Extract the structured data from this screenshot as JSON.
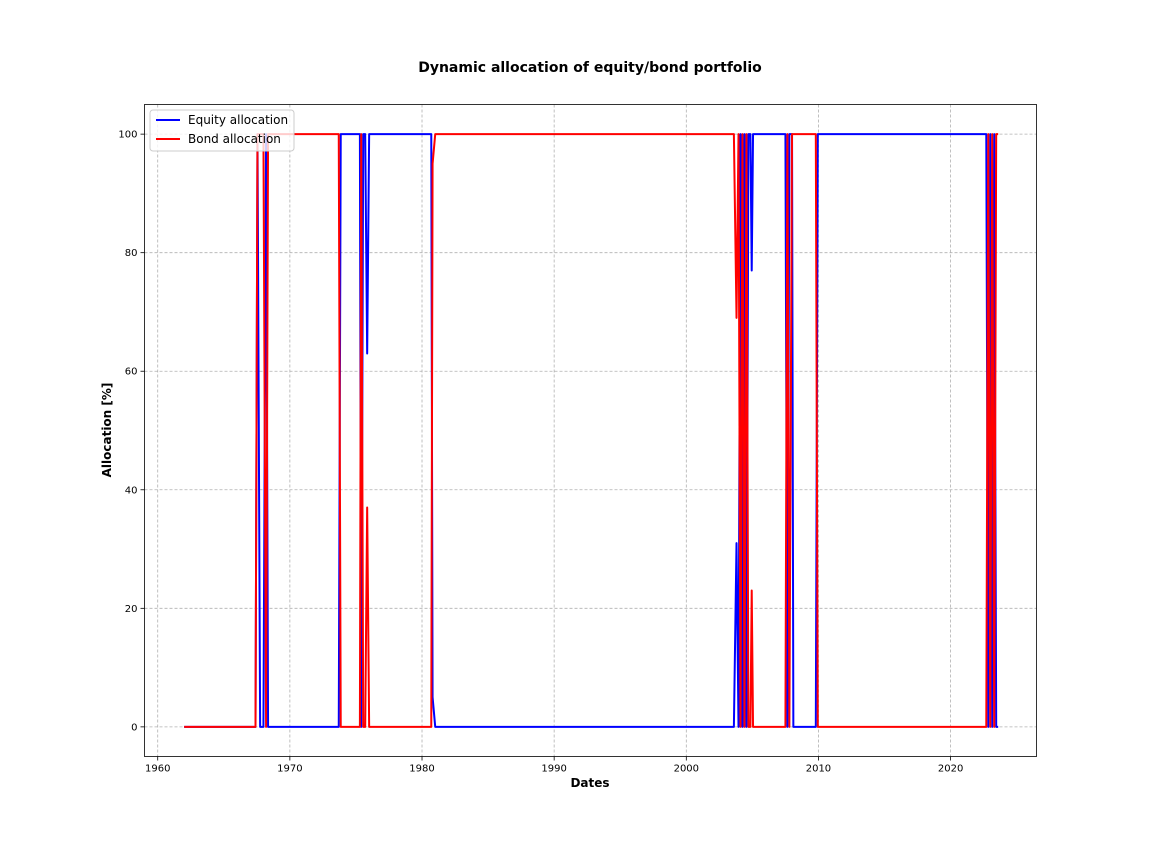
{
  "chart_data": {
    "type": "line",
    "title": "Dynamic allocation of equity/bond portfolio",
    "xlabel": "Dates",
    "ylabel": "Allocation [%]",
    "xlim": [
      1959,
      2026.5
    ],
    "ylim": [
      -5,
      105
    ],
    "xticks": [
      1960,
      1970,
      1980,
      1990,
      2000,
      2010,
      2020
    ],
    "yticks": [
      0,
      20,
      40,
      60,
      80,
      100
    ],
    "grid": true,
    "legend_position": "top-left",
    "series": [
      {
        "name": "Equity allocation",
        "color": "#0000ff",
        "points": [
          [
            1962.0,
            0
          ],
          [
            1967.4,
            0
          ],
          [
            1967.55,
            100
          ],
          [
            1967.75,
            0
          ],
          [
            1968.0,
            0
          ],
          [
            1968.2,
            100
          ],
          [
            1968.35,
            0
          ],
          [
            1973.7,
            0
          ],
          [
            1973.85,
            100
          ],
          [
            1975.3,
            100
          ],
          [
            1975.4,
            0
          ],
          [
            1975.55,
            100
          ],
          [
            1975.7,
            100
          ],
          [
            1975.85,
            63
          ],
          [
            1976.0,
            100
          ],
          [
            1980.7,
            100
          ],
          [
            1980.8,
            5
          ],
          [
            1981.0,
            0
          ],
          [
            2003.6,
            0
          ],
          [
            2003.8,
            31
          ],
          [
            2003.95,
            0
          ],
          [
            2004.1,
            100
          ],
          [
            2004.25,
            0
          ],
          [
            2004.4,
            100
          ],
          [
            2004.55,
            0
          ],
          [
            2004.7,
            100
          ],
          [
            2004.85,
            100
          ],
          [
            2004.95,
            77
          ],
          [
            2005.05,
            100
          ],
          [
            2007.5,
            100
          ],
          [
            2007.65,
            0
          ],
          [
            2007.8,
            100
          ],
          [
            2008.0,
            100
          ],
          [
            2008.1,
            0
          ],
          [
            2009.8,
            0
          ],
          [
            2009.95,
            100
          ],
          [
            2022.7,
            100
          ],
          [
            2022.85,
            0
          ],
          [
            2023.0,
            100
          ],
          [
            2023.15,
            0
          ],
          [
            2023.3,
            100
          ],
          [
            2023.45,
            0
          ],
          [
            2023.6,
            0
          ]
        ]
      },
      {
        "name": "Bond allocation",
        "color": "#ff0000",
        "points": [
          [
            1962.0,
            0
          ],
          [
            1967.4,
            0
          ],
          [
            1967.55,
            100
          ],
          [
            1967.75,
            100
          ],
          [
            1968.0,
            100
          ],
          [
            1968.2,
            0
          ],
          [
            1968.35,
            100
          ],
          [
            1973.7,
            100
          ],
          [
            1973.85,
            0
          ],
          [
            1975.3,
            0
          ],
          [
            1975.4,
            100
          ],
          [
            1975.55,
            0
          ],
          [
            1975.7,
            0
          ],
          [
            1975.85,
            37
          ],
          [
            1976.0,
            0
          ],
          [
            1980.7,
            0
          ],
          [
            1980.8,
            95
          ],
          [
            1981.0,
            100
          ],
          [
            2003.6,
            100
          ],
          [
            2003.8,
            69
          ],
          [
            2003.95,
            100
          ],
          [
            2004.1,
            0
          ],
          [
            2004.25,
            100
          ],
          [
            2004.4,
            0
          ],
          [
            2004.55,
            100
          ],
          [
            2004.7,
            0
          ],
          [
            2004.85,
            0
          ],
          [
            2004.95,
            23
          ],
          [
            2005.05,
            0
          ],
          [
            2007.5,
            0
          ],
          [
            2007.65,
            100
          ],
          [
            2007.8,
            0
          ],
          [
            2008.0,
            100
          ],
          [
            2008.1,
            100
          ],
          [
            2009.8,
            100
          ],
          [
            2009.95,
            0
          ],
          [
            2022.7,
            0
          ],
          [
            2022.85,
            100
          ],
          [
            2023.0,
            0
          ],
          [
            2023.15,
            100
          ],
          [
            2023.3,
            0
          ],
          [
            2023.45,
            100
          ],
          [
            2023.6,
            100
          ]
        ]
      }
    ]
  }
}
